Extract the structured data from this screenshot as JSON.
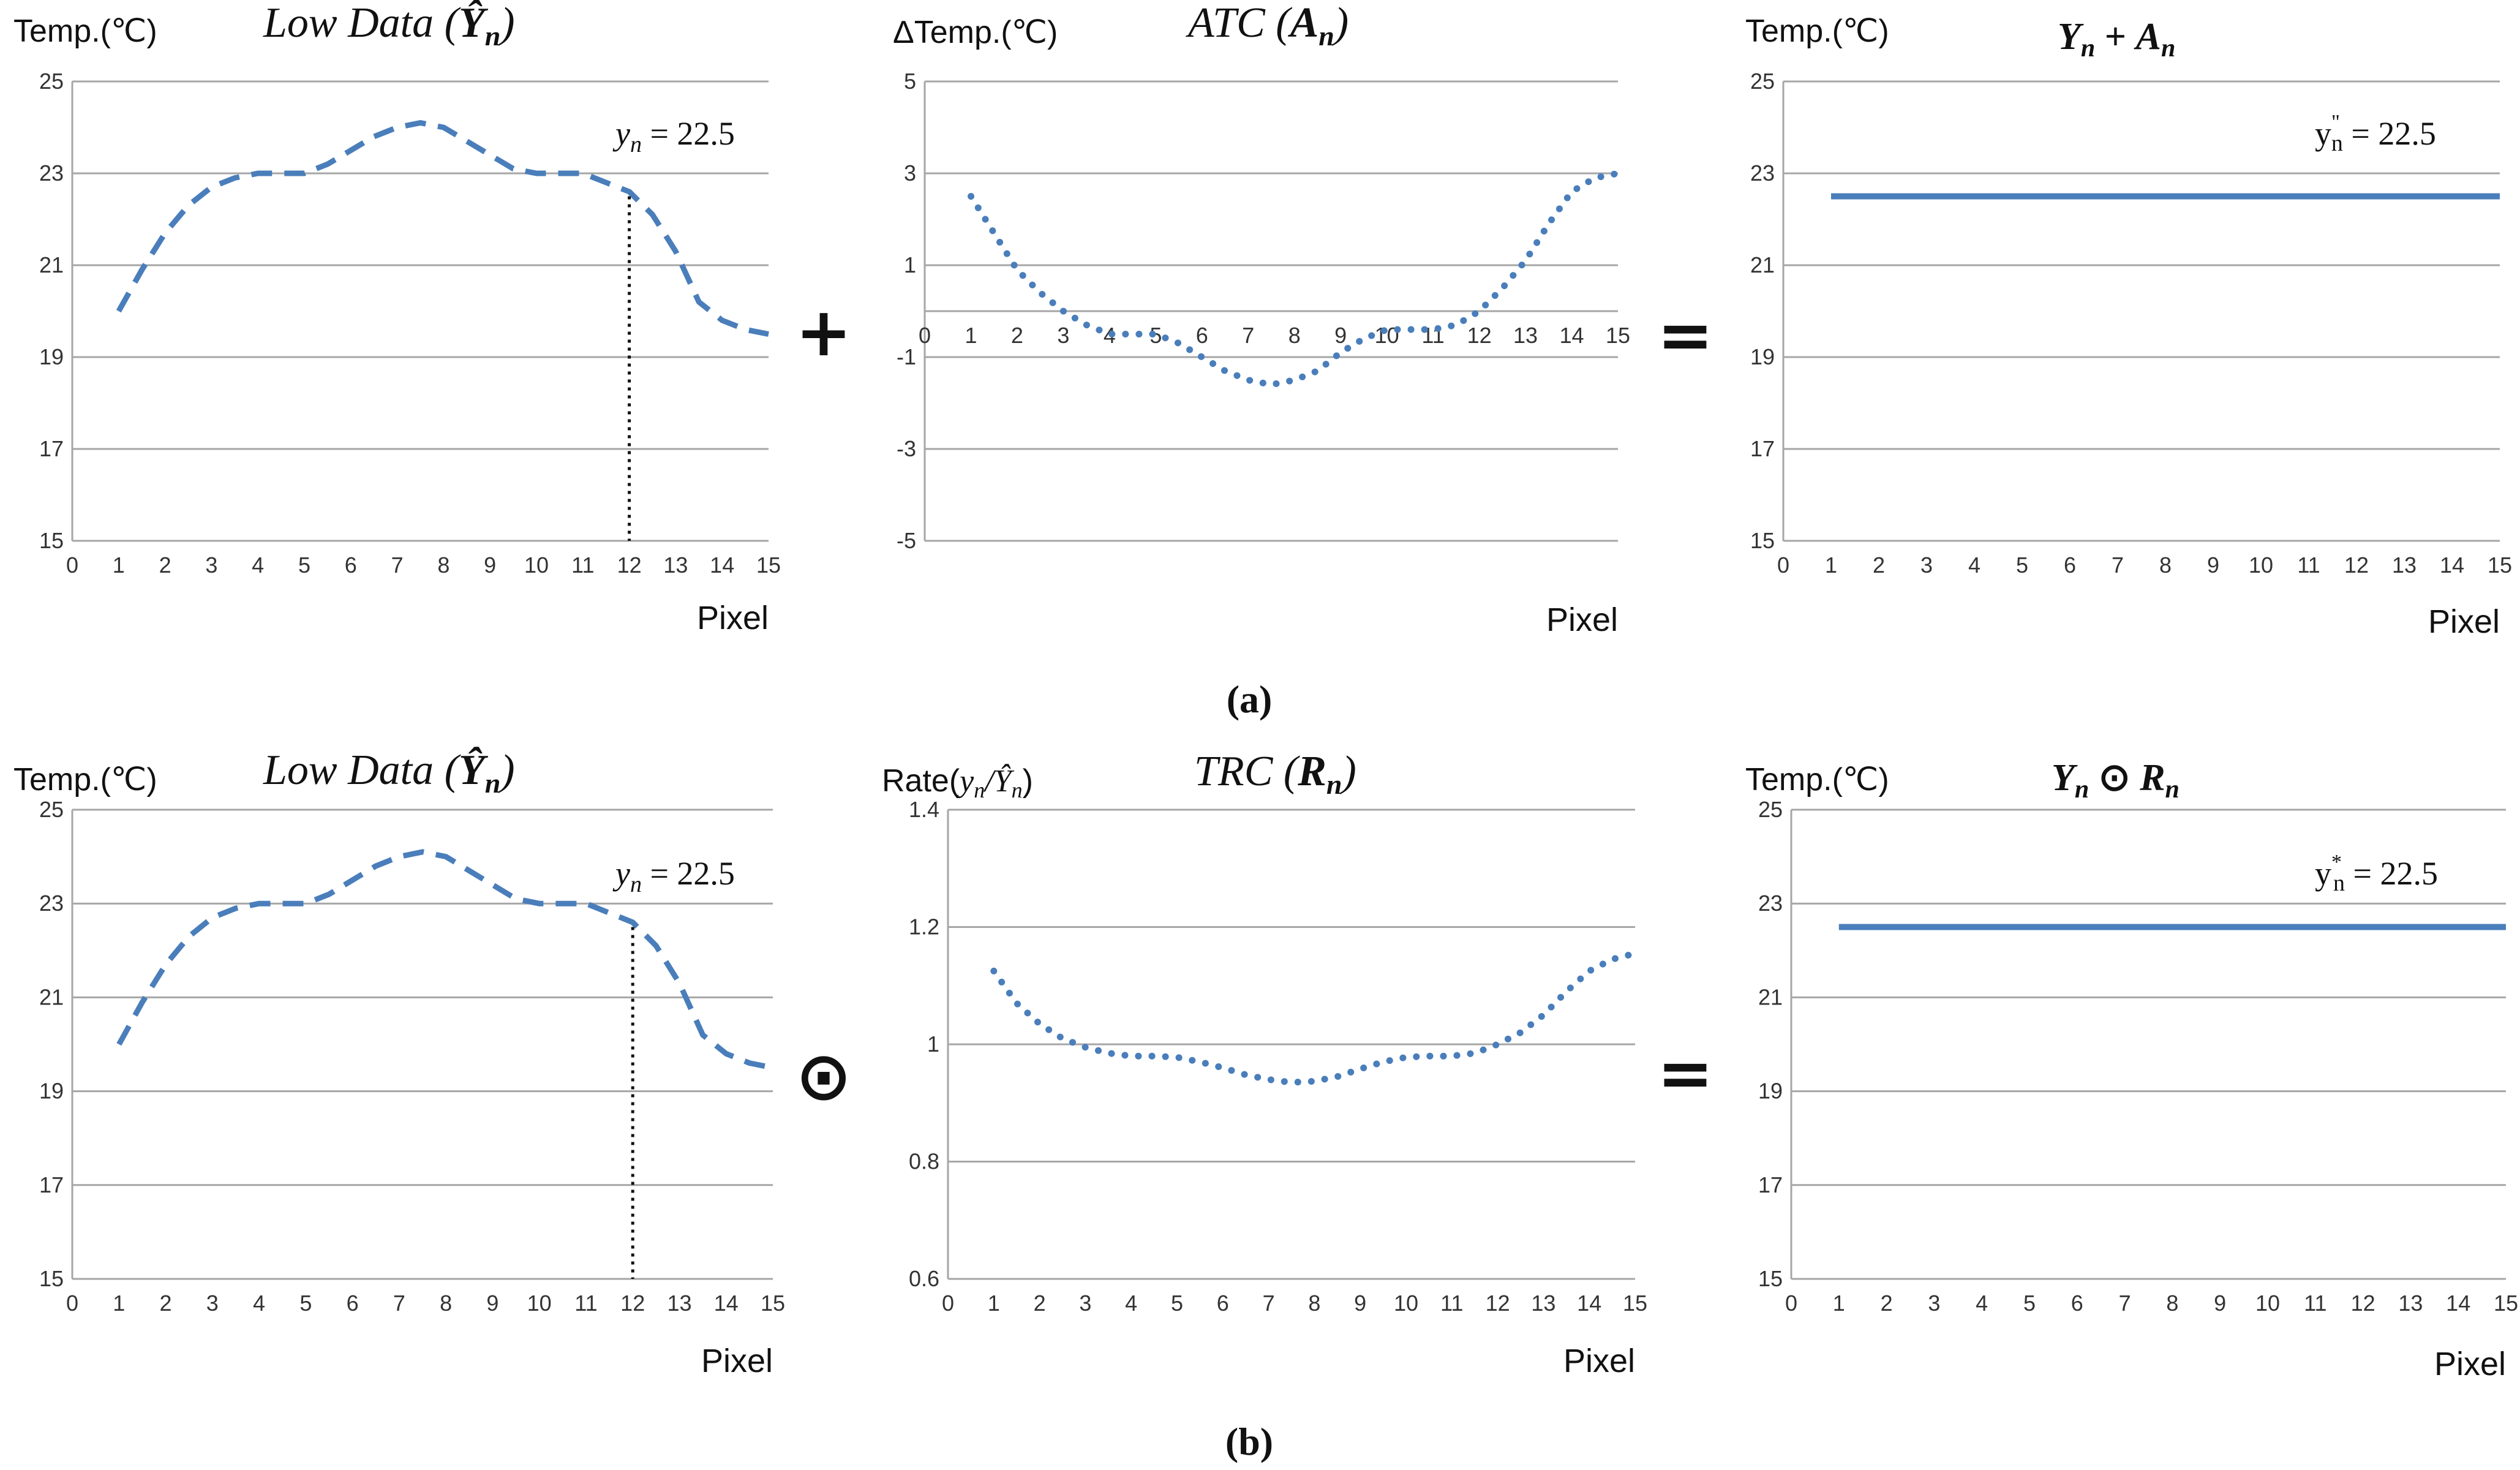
{
  "figure": {
    "row_captions": [
      "(a)",
      "(b)"
    ],
    "operators": [
      {
        "id": "plus",
        "symbol": "+"
      },
      {
        "id": "equals-a",
        "symbol": "="
      },
      {
        "id": "odot",
        "symbol": "⊙"
      },
      {
        "id": "equals-b",
        "symbol": "="
      }
    ],
    "series_color": "#4A7EBB",
    "grid_color": "#A6A6A6"
  },
  "chart_data": [
    {
      "id": "a-low-data",
      "type": "line",
      "style": "dashed",
      "title": "Low Data (Ŷn)",
      "title_plain": "Low Data (",
      "title_symbol": "Ŷ",
      "title_sub": "n",
      "title_close": ")",
      "ylabel": "Temp.(℃)",
      "xlabel": "Pixel",
      "ylim": [
        15,
        25
      ],
      "yticks": [
        15,
        17,
        19,
        21,
        23,
        25
      ],
      "ytick_labels": [
        "15",
        "17",
        "19",
        "21",
        "23",
        "25"
      ],
      "xlim": [
        0,
        15
      ],
      "xticks": [
        0,
        1,
        2,
        3,
        4,
        5,
        6,
        7,
        8,
        9,
        10,
        11,
        12,
        13,
        14,
        15
      ],
      "x": [
        1,
        1.5,
        2,
        2.5,
        3,
        3.5,
        4,
        4.5,
        5,
        5.5,
        6,
        6.5,
        7,
        7.5,
        8,
        8.5,
        9,
        9.5,
        10,
        10.5,
        11,
        11.5,
        12,
        12.5,
        13,
        13.5,
        14,
        14.5,
        15
      ],
      "y": [
        20.0,
        20.9,
        21.7,
        22.3,
        22.7,
        22.9,
        23.0,
        23.0,
        23.0,
        23.2,
        23.5,
        23.8,
        24.0,
        24.1,
        24.0,
        23.7,
        23.4,
        23.1,
        23.0,
        23.0,
        23.0,
        22.8,
        22.6,
        22.1,
        21.3,
        20.2,
        19.8,
        19.6,
        19.5
      ],
      "annotation": {
        "label": "yn = 22.5",
        "var": "y",
        "sub": "n",
        "rest": " = 22.5",
        "x": 12,
        "y": 22.5,
        "dropline": true
      }
    },
    {
      "id": "a-atc",
      "type": "line",
      "style": "dotted",
      "title": "ATC (An)",
      "title_plain": "ATC (",
      "title_symbol": "A",
      "title_sub": "n",
      "title_close": ")",
      "ylabel": "ΔTemp.(℃)",
      "xlabel": "Pixel",
      "ylim": [
        -5,
        5
      ],
      "yticks": [
        -5,
        -3,
        -1,
        1,
        3,
        5
      ],
      "ytick_labels": [
        "-5",
        "-3",
        "-1",
        "1",
        "3",
        "5"
      ],
      "xlim": [
        0,
        15
      ],
      "xticks": [
        0,
        1,
        2,
        3,
        4,
        5,
        6,
        7,
        8,
        9,
        10,
        11,
        12,
        13,
        14,
        15
      ],
      "xaxis_at": 0,
      "x": [
        1,
        1.5,
        2,
        2.5,
        3,
        3.5,
        4,
        4.5,
        5,
        5.5,
        6,
        6.5,
        7,
        7.5,
        8,
        8.5,
        9,
        9.5,
        10,
        10.5,
        11,
        11.5,
        12,
        12.5,
        13,
        13.5,
        14,
        14.5,
        15
      ],
      "y": [
        2.5,
        1.7,
        0.9,
        0.4,
        0.0,
        -0.3,
        -0.5,
        -0.5,
        -0.5,
        -0.7,
        -1.0,
        -1.3,
        -1.5,
        -1.6,
        -1.5,
        -1.3,
        -0.9,
        -0.6,
        -0.4,
        -0.4,
        -0.4,
        -0.3,
        0.0,
        0.5,
        1.1,
        1.9,
        2.6,
        2.9,
        3.0
      ]
    },
    {
      "id": "a-result",
      "type": "line",
      "style": "solid",
      "title": "Yn + An",
      "ylabel": "Temp.(℃)",
      "xlabel": "Pixel",
      "ylim": [
        15,
        25
      ],
      "yticks": [
        15,
        17,
        19,
        21,
        23,
        25
      ],
      "ytick_labels": [
        "15",
        "17",
        "19",
        "21",
        "23",
        "25"
      ],
      "xlim": [
        0,
        15
      ],
      "xticks": [
        0,
        1,
        2,
        3,
        4,
        5,
        6,
        7,
        8,
        9,
        10,
        11,
        12,
        13,
        14,
        15
      ],
      "x": [
        1,
        15
      ],
      "y": [
        22.5,
        22.5
      ],
      "annotation": {
        "label": "y\"n = 22.5",
        "var": "y",
        "sup": "\"",
        "sub": "n",
        "rest": " = 22.5"
      }
    },
    {
      "id": "b-low-data",
      "type": "line",
      "style": "dashed",
      "title": "Low Data (Ŷn)",
      "title_plain": "Low Data (",
      "title_symbol": "Ŷ",
      "title_sub": "n",
      "title_close": ")",
      "ylabel": "Temp.(℃)",
      "xlabel": "Pixel",
      "ylim": [
        15,
        25
      ],
      "yticks": [
        15,
        17,
        19,
        21,
        23,
        25
      ],
      "ytick_labels": [
        "15",
        "17",
        "19",
        "21",
        "23",
        "25"
      ],
      "xlim": [
        0,
        15
      ],
      "xticks": [
        0,
        1,
        2,
        3,
        4,
        5,
        6,
        7,
        8,
        9,
        10,
        11,
        12,
        13,
        14,
        15
      ],
      "x": [
        1,
        1.5,
        2,
        2.5,
        3,
        3.5,
        4,
        4.5,
        5,
        5.5,
        6,
        6.5,
        7,
        7.5,
        8,
        8.5,
        9,
        9.5,
        10,
        10.5,
        11,
        11.5,
        12,
        12.5,
        13,
        13.5,
        14,
        14.5,
        15
      ],
      "y": [
        20.0,
        20.9,
        21.7,
        22.3,
        22.7,
        22.9,
        23.0,
        23.0,
        23.0,
        23.2,
        23.5,
        23.8,
        24.0,
        24.1,
        24.0,
        23.7,
        23.4,
        23.1,
        23.0,
        23.0,
        23.0,
        22.8,
        22.6,
        22.1,
        21.3,
        20.2,
        19.8,
        19.6,
        19.5
      ],
      "annotation": {
        "label": "yn = 22.5",
        "var": "y",
        "sub": "n",
        "rest": " = 22.5",
        "x": 12,
        "y": 22.5,
        "dropline": true
      }
    },
    {
      "id": "b-trc",
      "type": "line",
      "style": "dotted",
      "title": "TRC (Rn)",
      "title_plain": "TRC (",
      "title_symbol": "R",
      "title_sub": "n",
      "title_close": ")",
      "ylabel": "Rate(yn/Ŷn)",
      "ylabel_plain": "Rate(",
      "xlabel": "Pixel",
      "ylim": [
        0.6,
        1.4
      ],
      "yticks": [
        0.6,
        0.8,
        1.0,
        1.2,
        1.4
      ],
      "ytick_labels": [
        "0.6",
        "0.8",
        "1",
        "1.2",
        "1.4"
      ],
      "xlim": [
        0,
        15
      ],
      "xticks": [
        0,
        1,
        2,
        3,
        4,
        5,
        6,
        7,
        8,
        9,
        10,
        11,
        12,
        13,
        14,
        15
      ],
      "x": [
        1,
        1.5,
        2,
        2.5,
        3,
        3.5,
        4,
        4.5,
        5,
        5.5,
        6,
        6.5,
        7,
        7.5,
        8,
        8.5,
        9,
        9.5,
        10,
        10.5,
        11,
        11.5,
        12,
        12.5,
        13,
        13.5,
        14,
        14.5,
        15
      ],
      "y": [
        1.125,
        1.07,
        1.035,
        1.01,
        0.995,
        0.985,
        0.98,
        0.98,
        0.978,
        0.97,
        0.96,
        0.948,
        0.94,
        0.935,
        0.937,
        0.945,
        0.958,
        0.97,
        0.978,
        0.98,
        0.98,
        0.985,
        1.0,
        1.02,
        1.05,
        1.09,
        1.125,
        1.145,
        1.155
      ]
    },
    {
      "id": "b-result",
      "type": "line",
      "style": "solid",
      "title": "Yn ⊙ Rn",
      "ylabel": "Temp.(℃)",
      "xlabel": "Pixel",
      "ylim": [
        15,
        25
      ],
      "yticks": [
        15,
        17,
        19,
        21,
        23,
        25
      ],
      "ytick_labels": [
        "15",
        "17",
        "19",
        "21",
        "23",
        "25"
      ],
      "xlim": [
        0,
        15
      ],
      "xticks": [
        0,
        1,
        2,
        3,
        4,
        5,
        6,
        7,
        8,
        9,
        10,
        11,
        12,
        13,
        14,
        15
      ],
      "x": [
        1,
        15
      ],
      "y": [
        22.5,
        22.5
      ],
      "annotation": {
        "label": "y*n = 22.5",
        "var": "y",
        "sup": "*",
        "sub": "n",
        "rest": " = 22.5"
      }
    }
  ]
}
